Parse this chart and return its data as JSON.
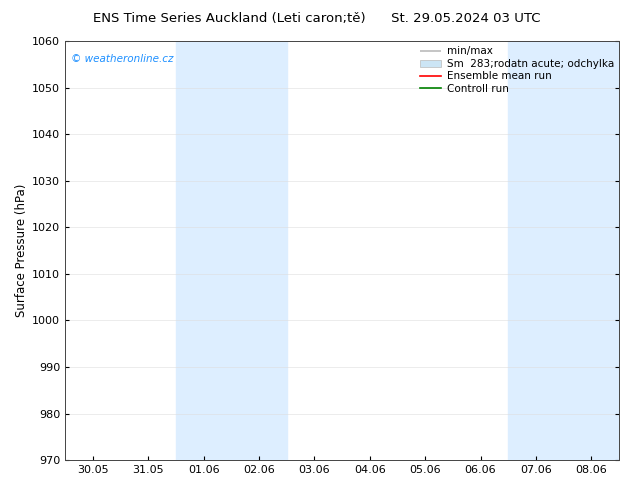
{
  "title": "ENS Time Series Auckland (Leti caron;tě)      St. 29.05.2024 03 UTC",
  "ylabel": "Surface Pressure (hPa)",
  "ylim": [
    970,
    1060
  ],
  "yticks": [
    970,
    980,
    990,
    1000,
    1010,
    1020,
    1030,
    1040,
    1050,
    1060
  ],
  "xtick_labels": [
    "30.05",
    "31.05",
    "01.06",
    "02.06",
    "03.06",
    "04.06",
    "05.06",
    "06.06",
    "07.06",
    "08.06"
  ],
  "xtick_positions": [
    0,
    1,
    2,
    3,
    4,
    5,
    6,
    7,
    8,
    9
  ],
  "xlim": [
    -0.5,
    9.5
  ],
  "shade_bands": [
    {
      "xstart": 1.5,
      "xend": 3.5
    },
    {
      "xstart": 7.5,
      "xend": 9.5
    }
  ],
  "shade_color": "#ddeeff",
  "watermark": "© weatheronline.cz",
  "watermark_color": "#1E90FF",
  "legend_labels": [
    "min/max",
    "Sm  283;rodatn acute; odchylka",
    "Ensemble mean run",
    "Controll run"
  ],
  "legend_minmax_color": "#bbbbbb",
  "legend_band_color": "#cce5f5",
  "legend_ens_color": "red",
  "legend_ctrl_color": "green",
  "bg_color": "#ffffff",
  "grid_color": "#dddddd",
  "title_fontsize": 9.5,
  "label_fontsize": 8.5,
  "tick_fontsize": 8,
  "legend_fontsize": 7.5
}
